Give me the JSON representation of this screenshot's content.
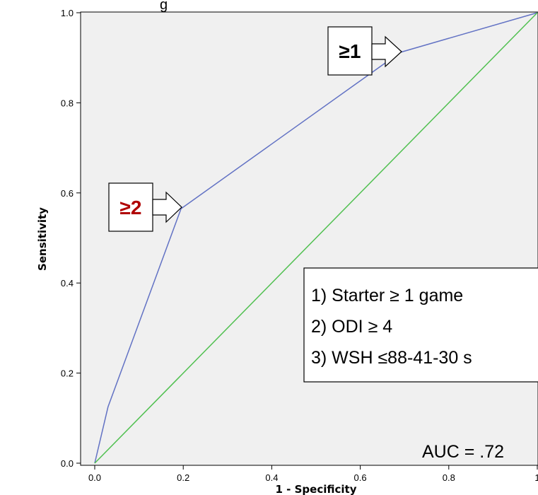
{
  "chart_data": {
    "type": "line",
    "xlabel": "1 - Specificity",
    "ylabel": "Sensitivity",
    "xlim": [
      0,
      1
    ],
    "ylim": [
      0,
      1
    ],
    "x_ticks": [
      "0.0",
      "0.2",
      "0.4",
      "0.6",
      "0.8",
      "1"
    ],
    "y_ticks": [
      "0.0",
      "0.2",
      "0.4",
      "0.6",
      "0.8",
      "1.0"
    ],
    "grid": false,
    "series": [
      {
        "color": "#6272c4",
        "x": [
          0,
          0.03,
          0.195,
          0.69,
          1.0
        ],
        "y": [
          0,
          0.125,
          0.565,
          0.912,
          1.0
        ]
      },
      {
        "color": "#50c050",
        "x": [
          0,
          1
        ],
        "y": [
          0,
          1
        ]
      }
    ],
    "annotations": [
      {
        "label": "≥1",
        "color": "#000000"
      },
      {
        "label": "≥2",
        "color": "#b00000"
      }
    ],
    "legend": {
      "items": [
        "1) Starter ≥ 1 game",
        "2) ODI ≥ 4",
        "3) WSH ≤88-41-30 s"
      ],
      "placement": "bottom-right"
    },
    "auc_text": "AUC = .72",
    "title_fragment": "g"
  }
}
